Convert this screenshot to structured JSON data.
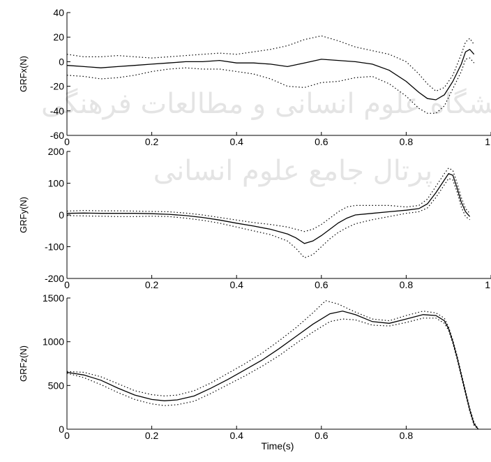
{
  "watermark": {
    "line1": "پژوهشگاه علوم انسانی و مطالعات فرهنگی",
    "line2": "پرتال جامع علوم انسانی"
  },
  "chart_data": [
    {
      "type": "line",
      "ylabel": "GRFx(N)",
      "xlabel": "",
      "xlim": [
        0,
        1
      ],
      "ylim": [
        -60,
        40
      ],
      "xticks": [
        0,
        0.2,
        0.4,
        0.6,
        0.8,
        1
      ],
      "xtick_labels": [
        "0",
        "0.2",
        "0.4",
        "0.6",
        "0.8",
        "1"
      ],
      "yticks": [
        -60,
        -40,
        -20,
        0,
        20,
        40
      ],
      "ytick_labels": [
        "-60",
        "-40",
        "-20",
        "0",
        "20",
        "40"
      ],
      "grid": false,
      "series": [
        {
          "style": "solid",
          "x": [
            0,
            0.04,
            0.08,
            0.12,
            0.16,
            0.2,
            0.24,
            0.28,
            0.32,
            0.36,
            0.4,
            0.44,
            0.48,
            0.52,
            0.56,
            0.6,
            0.64,
            0.68,
            0.72,
            0.76,
            0.8,
            0.83,
            0.85,
            0.87,
            0.89,
            0.91,
            0.93,
            0.94,
            0.95,
            0.96
          ],
          "y": [
            -3,
            -4,
            -5,
            -4,
            -3,
            -2,
            -1,
            0,
            0,
            1,
            -1,
            -1,
            -2,
            -4,
            -1,
            2,
            1,
            0,
            -2,
            -7,
            -16,
            -25,
            -30,
            -31,
            -27,
            -16,
            -2,
            8,
            10,
            6
          ]
        },
        {
          "style": "dotted",
          "x": [
            0,
            0.04,
            0.08,
            0.12,
            0.16,
            0.2,
            0.24,
            0.28,
            0.32,
            0.36,
            0.4,
            0.44,
            0.48,
            0.52,
            0.56,
            0.6,
            0.64,
            0.68,
            0.72,
            0.76,
            0.8,
            0.83,
            0.85,
            0.87,
            0.89,
            0.91,
            0.93,
            0.94,
            0.95,
            0.96
          ],
          "y": [
            6,
            4,
            4,
            5,
            4,
            3,
            4,
            5,
            6,
            7,
            6,
            8,
            10,
            13,
            18,
            21,
            17,
            12,
            9,
            6,
            0,
            -10,
            -18,
            -24,
            -21,
            -11,
            6,
            16,
            19,
            14
          ]
        },
        {
          "style": "dotted",
          "x": [
            0,
            0.04,
            0.08,
            0.12,
            0.16,
            0.2,
            0.24,
            0.28,
            0.32,
            0.36,
            0.4,
            0.44,
            0.48,
            0.52,
            0.56,
            0.6,
            0.64,
            0.68,
            0.72,
            0.76,
            0.8,
            0.83,
            0.85,
            0.87,
            0.89,
            0.91,
            0.93,
            0.94,
            0.95,
            0.96
          ],
          "y": [
            -11,
            -12,
            -14,
            -13,
            -11,
            -8,
            -6,
            -5,
            -6,
            -6,
            -8,
            -10,
            -14,
            -20,
            -21,
            -17,
            -16,
            -13,
            -12,
            -18,
            -28,
            -38,
            -42,
            -42,
            -36,
            -22,
            -8,
            2,
            3,
            -1
          ]
        }
      ]
    },
    {
      "type": "line",
      "ylabel": "GRFy(N)",
      "xlabel": "",
      "xlim": [
        0,
        1
      ],
      "ylim": [
        -200,
        200
      ],
      "xticks": [
        0,
        0.2,
        0.4,
        0.6,
        0.8,
        1
      ],
      "xtick_labels": [
        "0",
        "0.2",
        "0.4",
        "0.6",
        "0.8",
        "1"
      ],
      "yticks": [
        -200,
        -100,
        0,
        100,
        200
      ],
      "ytick_labels": [
        "-200",
        "-100",
        "0",
        "100",
        "200"
      ],
      "grid": false,
      "series": [
        {
          "style": "solid",
          "x": [
            0,
            0.04,
            0.08,
            0.12,
            0.16,
            0.2,
            0.24,
            0.28,
            0.32,
            0.36,
            0.4,
            0.44,
            0.48,
            0.52,
            0.54,
            0.56,
            0.58,
            0.6,
            0.62,
            0.64,
            0.66,
            0.68,
            0.72,
            0.76,
            0.8,
            0.83,
            0.85,
            0.87,
            0.89,
            0.9,
            0.91,
            0.92,
            0.93,
            0.94,
            0.95
          ],
          "y": [
            5,
            6,
            5,
            5,
            5,
            4,
            2,
            -2,
            -8,
            -16,
            -26,
            -35,
            -45,
            -60,
            -72,
            -90,
            -82,
            -65,
            -45,
            -25,
            -10,
            0,
            5,
            10,
            15,
            20,
            35,
            70,
            110,
            130,
            125,
            85,
            40,
            10,
            -5
          ]
        },
        {
          "style": "dotted",
          "x": [
            0,
            0.04,
            0.08,
            0.12,
            0.16,
            0.2,
            0.24,
            0.28,
            0.32,
            0.36,
            0.4,
            0.44,
            0.48,
            0.52,
            0.54,
            0.56,
            0.58,
            0.6,
            0.62,
            0.64,
            0.66,
            0.68,
            0.72,
            0.76,
            0.8,
            0.83,
            0.85,
            0.87,
            0.89,
            0.9,
            0.91,
            0.92,
            0.93,
            0.94,
            0.95
          ],
          "y": [
            12,
            14,
            13,
            13,
            12,
            11,
            10,
            6,
            0,
            -8,
            -16,
            -24,
            -30,
            -38,
            -45,
            -52,
            -45,
            -30,
            -10,
            10,
            25,
            30,
            30,
            30,
            25,
            30,
            50,
            90,
            130,
            148,
            140,
            100,
            55,
            20,
            5
          ]
        },
        {
          "style": "dotted",
          "x": [
            0,
            0.04,
            0.08,
            0.12,
            0.16,
            0.2,
            0.24,
            0.28,
            0.32,
            0.36,
            0.4,
            0.44,
            0.48,
            0.52,
            0.54,
            0.56,
            0.58,
            0.6,
            0.62,
            0.64,
            0.66,
            0.68,
            0.72,
            0.76,
            0.8,
            0.83,
            0.85,
            0.87,
            0.89,
            0.9,
            0.91,
            0.92,
            0.93,
            0.94,
            0.95
          ],
          "y": [
            -2,
            -3,
            -4,
            -5,
            -5,
            -4,
            -5,
            -10,
            -17,
            -26,
            -38,
            -50,
            -62,
            -82,
            -105,
            -135,
            -125,
            -100,
            -75,
            -55,
            -40,
            -28,
            -15,
            -5,
            5,
            10,
            22,
            55,
            95,
            115,
            110,
            72,
            25,
            -5,
            -15
          ]
        }
      ]
    },
    {
      "type": "line",
      "ylabel": "GRFz(N)",
      "xlabel": "Time(s)",
      "xlim": [
        0,
        1
      ],
      "ylim": [
        0,
        1500
      ],
      "xticks": [
        0,
        0.2,
        0.4,
        0.6,
        0.8
      ],
      "xtick_labels": [
        "0",
        "0.2",
        "0.4",
        "0.6",
        "0.8"
      ],
      "yticks": [
        0,
        500,
        1000,
        1500
      ],
      "ytick_labels": [
        "0",
        "500",
        "1000",
        "1500"
      ],
      "grid": false,
      "series": [
        {
          "style": "solid",
          "x": [
            0,
            0.04,
            0.08,
            0.12,
            0.16,
            0.2,
            0.23,
            0.26,
            0.3,
            0.34,
            0.38,
            0.42,
            0.46,
            0.5,
            0.54,
            0.58,
            0.62,
            0.65,
            0.68,
            0.72,
            0.76,
            0.8,
            0.84,
            0.87,
            0.89,
            0.9,
            0.91,
            0.92,
            0.93,
            0.94,
            0.95,
            0.96,
            0.97
          ],
          "y": [
            650,
            620,
            560,
            470,
            390,
            340,
            325,
            335,
            380,
            470,
            570,
            680,
            790,
            920,
            1060,
            1200,
            1320,
            1350,
            1310,
            1230,
            1210,
            1260,
            1310,
            1300,
            1240,
            1150,
            1000,
            820,
            620,
            420,
            220,
            60,
            0
          ]
        },
        {
          "style": "dotted",
          "x": [
            0,
            0.04,
            0.08,
            0.12,
            0.16,
            0.2,
            0.23,
            0.26,
            0.3,
            0.34,
            0.38,
            0.42,
            0.46,
            0.5,
            0.54,
            0.58,
            0.61,
            0.64,
            0.68,
            0.72,
            0.76,
            0.8,
            0.84,
            0.87,
            0.89,
            0.9,
            0.91,
            0.92,
            0.93,
            0.94,
            0.95,
            0.96,
            0.97
          ],
          "y": [
            660,
            650,
            600,
            520,
            440,
            395,
            380,
            390,
            440,
            530,
            640,
            750,
            870,
            1010,
            1160,
            1330,
            1470,
            1430,
            1340,
            1260,
            1240,
            1300,
            1350,
            1330,
            1270,
            1170,
            1020,
            840,
            640,
            440,
            240,
            80,
            0
          ]
        },
        {
          "style": "dotted",
          "x": [
            0,
            0.04,
            0.08,
            0.12,
            0.16,
            0.2,
            0.23,
            0.26,
            0.3,
            0.34,
            0.38,
            0.42,
            0.46,
            0.5,
            0.54,
            0.58,
            0.62,
            0.65,
            0.68,
            0.72,
            0.76,
            0.8,
            0.84,
            0.87,
            0.89,
            0.9,
            0.91,
            0.92,
            0.93,
            0.94,
            0.95,
            0.96,
            0.97
          ],
          "y": [
            640,
            590,
            510,
            420,
            340,
            290,
            270,
            280,
            320,
            410,
            510,
            610,
            720,
            840,
            980,
            1110,
            1230,
            1260,
            1250,
            1190,
            1180,
            1220,
            1270,
            1270,
            1210,
            1130,
            980,
            800,
            600,
            400,
            200,
            45,
            0
          ]
        }
      ]
    }
  ]
}
